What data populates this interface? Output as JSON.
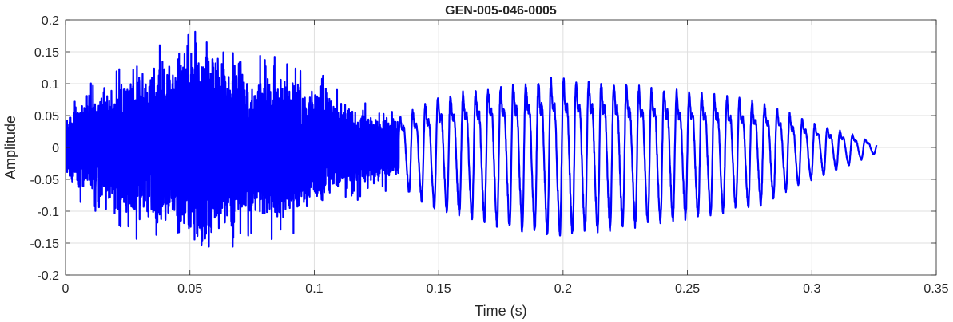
{
  "chart_data": {
    "type": "line",
    "title": "GEN-005-046-0005",
    "xlabel": "Time (s)",
    "ylabel": "Amplitude",
    "xlim": [
      0,
      0.35
    ],
    "ylim": [
      -0.2,
      0.2
    ],
    "grid": true,
    "legend": "none",
    "x_ticks": [
      0,
      0.05,
      0.1,
      0.15,
      0.2,
      0.25,
      0.3,
      0.35
    ],
    "x_tick_labels": [
      "0",
      "0.05",
      "0.1",
      "0.15",
      "0.2",
      "0.25",
      "0.3",
      "0.35"
    ],
    "y_ticks": [
      -0.2,
      -0.15,
      -0.1,
      -0.05,
      0,
      0.05,
      0.1,
      0.15,
      0.2
    ],
    "y_tick_labels": [
      "-0.2",
      "-0.15",
      "-0.1",
      "-0.05",
      "0",
      "0.05",
      "0.1",
      "0.15",
      "0.2"
    ],
    "series": [
      {
        "color": "#0000ff",
        "x_start": 0,
        "x_end": 0.326,
        "noisy_segment": {
          "x_range": [
            0,
            0.134
          ],
          "envelope": [
            [
              0,
              0.055
            ],
            [
              0.02,
              0.11
            ],
            [
              0.04,
              0.14
            ],
            [
              0.052,
              0.18
            ],
            [
              0.06,
              0.16
            ],
            [
              0.075,
              0.12
            ],
            [
              0.09,
              0.12
            ],
            [
              0.1,
              0.1
            ],
            [
              0.115,
              0.07
            ],
            [
              0.134,
              0.05
            ]
          ]
        },
        "periodic_segment": {
          "x_range": [
            0.134,
            0.326
          ],
          "cycle_period": 0.00505,
          "envelope": [
            [
              0.134,
              0.055
            ],
            [
              0.15,
              0.09
            ],
            [
              0.18,
              0.115
            ],
            [
              0.2,
              0.125
            ],
            [
              0.23,
              0.11
            ],
            [
              0.26,
              0.095
            ],
            [
              0.28,
              0.08
            ],
            [
              0.3,
              0.045
            ],
            [
              0.315,
              0.025
            ],
            [
              0.326,
              0.008
            ]
          ]
        }
      }
    ]
  }
}
